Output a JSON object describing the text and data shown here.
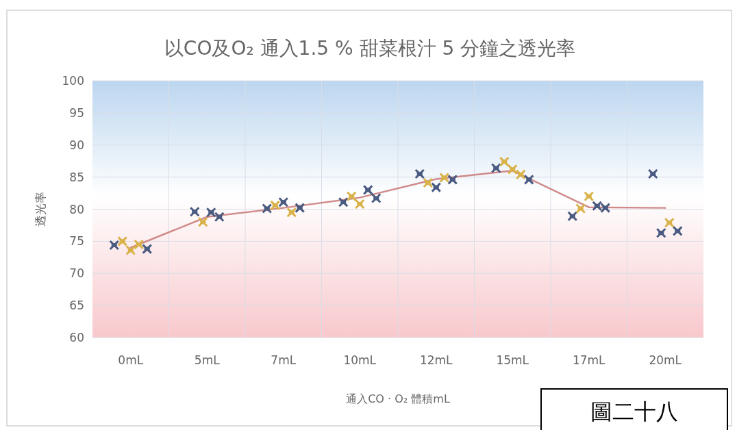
{
  "chart_data": {
    "type": "line",
    "title": "以CO及O₂ 通入1.5 % 甜菜根汁 5 分鐘之透光率",
    "xlabel": "通入CO · O₂ 體積mL",
    "ylabel": "透光率",
    "categories": [
      "0mL",
      "5mL",
      "7mL",
      "10mL",
      "12mL",
      "15mL",
      "17mL",
      "20mL"
    ],
    "ylim": [
      60,
      100
    ],
    "yticks": [
      60,
      65,
      70,
      75,
      80,
      85,
      90,
      95,
      100
    ],
    "grid": true,
    "annotations": [
      "圖二十八"
    ],
    "series": [
      {
        "color": "#d08a8a",
        "marker": "none",
        "values": [
          74,
          78.8,
          80.2,
          81.8,
          84.7,
          86,
          80.3,
          80.2
        ]
      },
      {
        "type": "scatter",
        "marker": "cross",
        "x": [
          "0mL",
          "0mL",
          "0mL",
          "0mL",
          "0mL",
          "5mL",
          "5mL",
          "5mL",
          "5mL",
          "7mL",
          "7mL",
          "7mL",
          "7mL",
          "7mL",
          "10mL",
          "10mL",
          "10mL",
          "10mL",
          "10mL",
          "12mL",
          "12mL",
          "12mL",
          "12mL",
          "12mL",
          "15mL",
          "15mL",
          "15mL",
          "15mL",
          "15mL",
          "17mL",
          "17mL",
          "17mL",
          "17mL",
          "17mL",
          "20mL",
          "20mL",
          "20mL",
          "20mL"
        ],
        "values": [
          74.4,
          75,
          73.6,
          74.5,
          73.8,
          79.6,
          78,
          79.5,
          78.8,
          80.1,
          80.6,
          81.1,
          79.5,
          80.2,
          81.1,
          82,
          80.8,
          83,
          81.7,
          85.5,
          84.1,
          83.4,
          84.9,
          84.6,
          86.4,
          87.4,
          86.2,
          85.4,
          84.6,
          78.9,
          80.1,
          82,
          80.5,
          80.2,
          85.5,
          76.3,
          77.9,
          76.6
        ],
        "colors": [
          "#4a5a80",
          "#d9b24a",
          "#d9b24a",
          "#d9b24a",
          "#4a5a80",
          "#4a5a80",
          "#d9b24a",
          "#4a5a80",
          "#4a5a80",
          "#4a5a80",
          "#d9b24a",
          "#4a5a80",
          "#d9b24a",
          "#4a5a80",
          "#4a5a80",
          "#d9b24a",
          "#d9b24a",
          "#4a5a80",
          "#4a5a80",
          "#4a5a80",
          "#d9b24a",
          "#4a5a80",
          "#d9b24a",
          "#4a5a80",
          "#4a5a80",
          "#d9b24a",
          "#d9b24a",
          "#d9b24a",
          "#4a5a80",
          "#4a5a80",
          "#d9b24a",
          "#d9b24a",
          "#4a5a80",
          "#4a5a80",
          "#4a5a80",
          "#4a5a80",
          "#d9b24a",
          "#4a5a80"
        ]
      }
    ]
  }
}
